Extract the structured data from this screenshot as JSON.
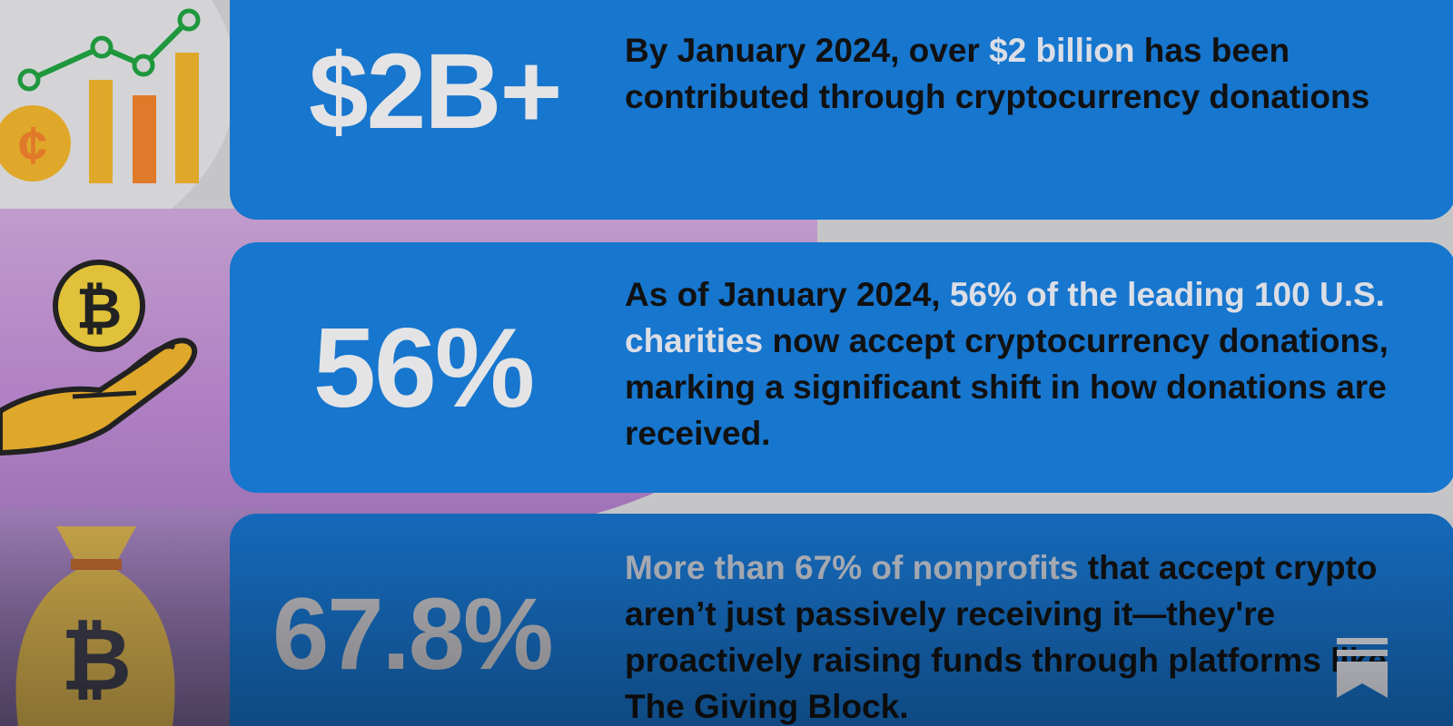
{
  "stats": [
    {
      "value": "$2B+",
      "text_parts": [
        "By January 2024, over ",
        "$2 billion",
        " has been contributed through cryptocurrency donations"
      ],
      "icon": "chart-coin-icon"
    },
    {
      "value": "56%",
      "text_parts": [
        "As of January 2024, ",
        "56% of the leading 100 U.S. charities",
        " now accept cryptocurrency donations, marking a significant shift in how donations are received."
      ],
      "icon": "bitcoin-hand-icon"
    },
    {
      "value": "67.8%",
      "text_parts": [
        "More than 67% of nonprofits",
        " that accept crypto aren’t just passively receiving it—they're proactively raising funds through platforms like The Giving Block."
      ],
      "icon": "bitcoin-money-bag-icon"
    }
  ],
  "colors": {
    "card_blue": "#1778d2",
    "highlight": "#dfe2ea",
    "icon_gold": "#e3ab2b",
    "icon_orange": "#e57b2b",
    "icon_green": "#1f9a3e"
  },
  "bookmark_icon": "bookmark-icon"
}
